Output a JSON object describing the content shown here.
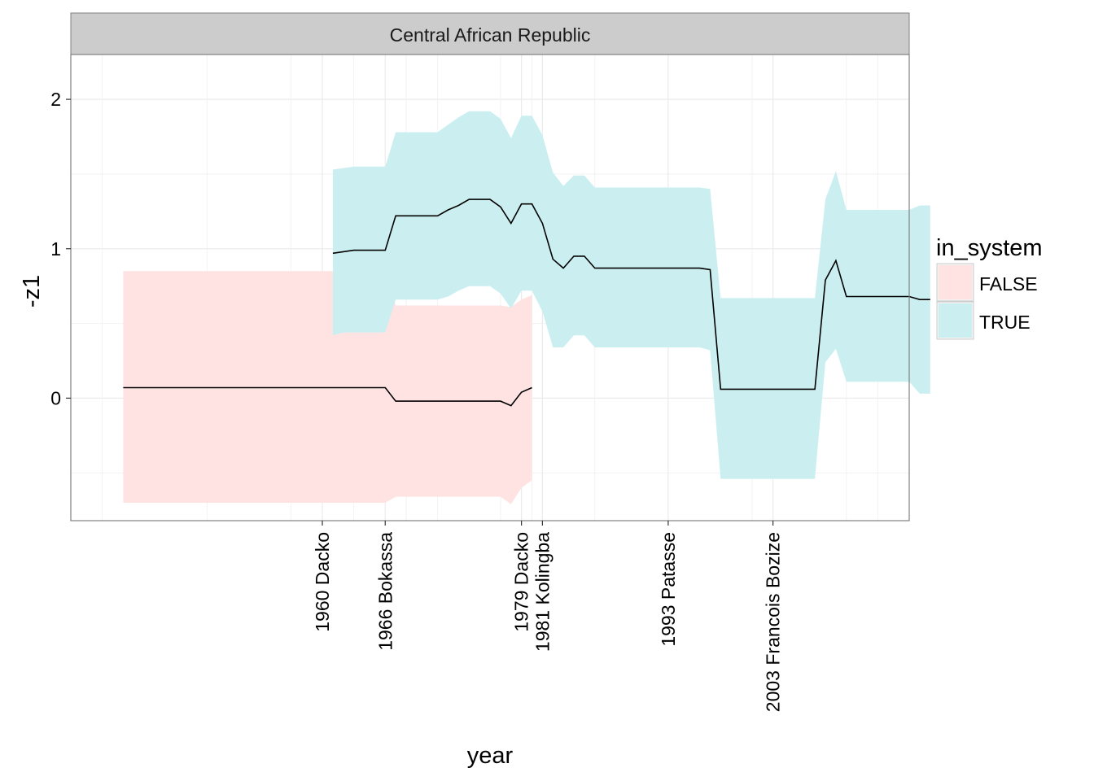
{
  "chart_data": {
    "type": "area",
    "title": "",
    "facet_label": "Central African Republic",
    "xlabel": "year",
    "ylabel": "-z1",
    "xlim": [
      1936,
      2016
    ],
    "ylim": [
      -0.82,
      2.3
    ],
    "grid": true,
    "theme": "bw",
    "yticks": [
      0,
      1,
      2
    ],
    "y_minor_ticks": [
      -0.5,
      0.5,
      1.5
    ],
    "xticks": [
      {
        "x": 1960,
        "label": "1960 Dacko"
      },
      {
        "x": 1966,
        "label": "1966 Bokassa"
      },
      {
        "x": 1979,
        "label": "1979 Dacko"
      },
      {
        "x": 1981,
        "label": "1981 Kolingba"
      },
      {
        "x": 1993,
        "label": "1993 Patasse"
      },
      {
        "x": 2003,
        "label": "2003 Francois Bozize"
      }
    ],
    "x_minor_grid": [
      1939,
      1949,
      1957,
      1963,
      1968,
      1971,
      1977,
      1980,
      1986,
      2001,
      2010,
      2013
    ],
    "legend": {
      "title": "in_system",
      "position": "right",
      "entries": [
        {
          "label": "FALSE",
          "color": "#F8766D"
        },
        {
          "label": "TRUE",
          "color": "#00BFC4"
        }
      ]
    },
    "colors": {
      "false_fill": "#ffe3e3",
      "true_fill": "#cbeff1",
      "line": "#000000",
      "facet_strip": "#cccccc",
      "grid": "#ebebeb"
    },
    "series": [
      {
        "in_system": false,
        "points": [
          {
            "x": 1941,
            "y": 0.07,
            "lower": -0.7,
            "upper": 0.85
          },
          {
            "x": 1966,
            "y": 0.07,
            "lower": -0.7,
            "upper": 0.85
          },
          {
            "x": 1967,
            "y": -0.02,
            "lower": -0.66,
            "upper": 0.62
          },
          {
            "x": 1976,
            "y": -0.02,
            "lower": -0.66,
            "upper": 0.62
          },
          {
            "x": 1977,
            "y": -0.02,
            "lower": -0.66,
            "upper": 0.62
          },
          {
            "x": 1978,
            "y": -0.05,
            "lower": -0.71,
            "upper": 0.61
          },
          {
            "x": 1979,
            "y": 0.04,
            "lower": -0.6,
            "upper": 0.66
          },
          {
            "x": 1980,
            "y": 0.07,
            "lower": -0.55,
            "upper": 0.69
          }
        ]
      },
      {
        "in_system": true,
        "points": [
          {
            "x": 1961,
            "y": 0.97,
            "lower": 0.42,
            "upper": 1.53
          },
          {
            "x": 1962,
            "y": 0.98,
            "lower": 0.44,
            "upper": 1.54
          },
          {
            "x": 1963,
            "y": 0.99,
            "lower": 0.44,
            "upper": 1.55
          },
          {
            "x": 1966,
            "y": 0.99,
            "lower": 0.44,
            "upper": 1.55
          },
          {
            "x": 1967,
            "y": 1.22,
            "lower": 0.66,
            "upper": 1.78
          },
          {
            "x": 1971,
            "y": 1.22,
            "lower": 0.66,
            "upper": 1.78
          },
          {
            "x": 1972,
            "y": 1.26,
            "lower": 0.68,
            "upper": 1.83
          },
          {
            "x": 1973,
            "y": 1.29,
            "lower": 0.72,
            "upper": 1.88
          },
          {
            "x": 1974,
            "y": 1.33,
            "lower": 0.75,
            "upper": 1.92
          },
          {
            "x": 1976,
            "y": 1.33,
            "lower": 0.75,
            "upper": 1.92
          },
          {
            "x": 1977,
            "y": 1.28,
            "lower": 0.7,
            "upper": 1.87
          },
          {
            "x": 1978,
            "y": 1.17,
            "lower": 0.6,
            "upper": 1.74
          },
          {
            "x": 1979,
            "y": 1.3,
            "lower": 0.72,
            "upper": 1.89
          },
          {
            "x": 1980,
            "y": 1.3,
            "lower": 0.72,
            "upper": 1.89
          },
          {
            "x": 1981,
            "y": 1.17,
            "lower": 0.58,
            "upper": 1.76
          },
          {
            "x": 1982,
            "y": 0.93,
            "lower": 0.34,
            "upper": 1.51
          },
          {
            "x": 1983,
            "y": 0.87,
            "lower": 0.34,
            "upper": 1.42
          },
          {
            "x": 1984,
            "y": 0.95,
            "lower": 0.42,
            "upper": 1.49
          },
          {
            "x": 1985,
            "y": 0.95,
            "lower": 0.42,
            "upper": 1.49
          },
          {
            "x": 1986,
            "y": 0.87,
            "lower": 0.34,
            "upper": 1.41
          },
          {
            "x": 1996,
            "y": 0.87,
            "lower": 0.34,
            "upper": 1.41
          },
          {
            "x": 1997,
            "y": 0.86,
            "lower": 0.32,
            "upper": 1.4
          },
          {
            "x": 1998,
            "y": 0.06,
            "lower": -0.54,
            "upper": 0.67
          },
          {
            "x": 2007,
            "y": 0.06,
            "lower": -0.54,
            "upper": 0.67
          },
          {
            "x": 2008,
            "y": 0.79,
            "lower": 0.24,
            "upper": 1.33
          },
          {
            "x": 2009,
            "y": 0.92,
            "lower": 0.33,
            "upper": 1.52
          },
          {
            "x": 2010,
            "y": 0.68,
            "lower": 0.11,
            "upper": 1.26
          },
          {
            "x": 2016,
            "y": 0.68,
            "lower": 0.11,
            "upper": 1.26
          },
          {
            "x": 2017,
            "y": 0.66,
            "lower": 0.03,
            "upper": 1.29
          },
          {
            "x": 2018,
            "y": 0.66,
            "lower": 0.03,
            "upper": 1.29
          }
        ]
      }
    ]
  }
}
